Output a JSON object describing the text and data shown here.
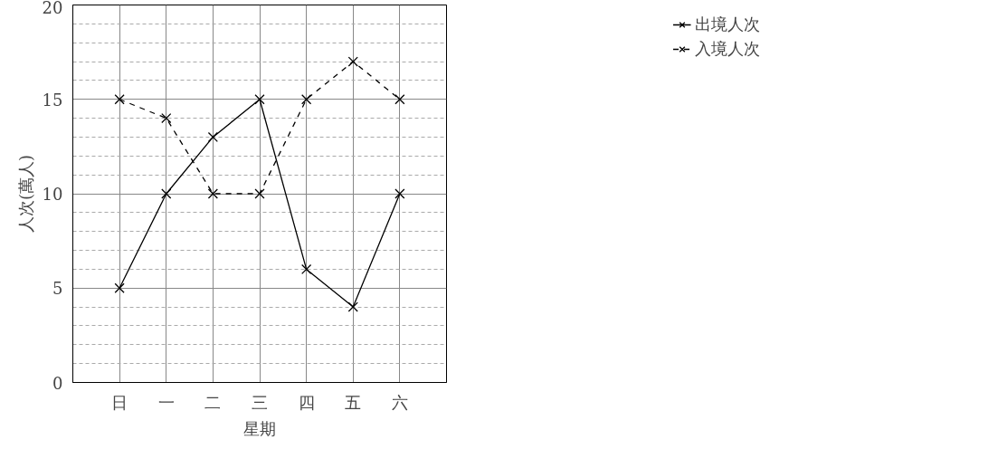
{
  "chart_data": {
    "type": "line",
    "xlabel": "星期",
    "ylabel": "人次(萬人)",
    "categories": [
      "日",
      "一",
      "二",
      "三",
      "四",
      "五",
      "六"
    ],
    "series": [
      {
        "name": "出境人次",
        "color": "#000000",
        "line_style": "solid",
        "values": [
          5,
          10,
          13,
          15,
          6,
          4,
          10
        ]
      },
      {
        "name": "入境人次",
        "color": "#000000",
        "line_style": "dashed",
        "values": [
          15,
          14,
          10,
          10,
          15,
          17,
          15
        ]
      }
    ],
    "ylim": [
      0,
      20
    ],
    "yticks": [
      0,
      5,
      10,
      15,
      20
    ],
    "grid": true,
    "legend": "right",
    "marker": "cross"
  }
}
